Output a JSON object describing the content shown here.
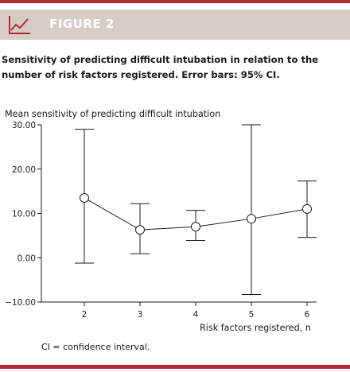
{
  "colors": {
    "accent": "#b22b34",
    "header_bg": "#d6ccc6",
    "ink": "#1a1a1a"
  },
  "header": {
    "label": "FIGURE 2",
    "icon": "line-chart-icon"
  },
  "caption": "Sensitivity of predicting difficult intubation in relation to the number of risk factors registered. Error bars: 95% CI.",
  "footnote": "CI = confidence interval.",
  "chart_data": {
    "type": "line",
    "title": "Mean sensitivity of predicting difficult intubation",
    "xlabel": "Risk factors registered, n",
    "ylabel": "",
    "x": [
      2,
      3,
      4,
      5,
      6
    ],
    "xticks": [
      "2",
      "3",
      "4",
      "5",
      "6"
    ],
    "yticks": [
      "30.00",
      "20.00",
      "10.00",
      "0.00",
      "−10.00"
    ],
    "ytick_values": [
      30,
      20,
      10,
      0,
      -10
    ],
    "ylim": [
      -10,
      30
    ],
    "series": [
      {
        "values": [
          13.5,
          6.3,
          7.0,
          8.8,
          11.0
        ],
        "lower": [
          -1.2,
          0.9,
          3.9,
          -8.3,
          4.6
        ],
        "upper": [
          29.0,
          12.2,
          10.7,
          30.0,
          17.3
        ]
      }
    ],
    "grid": false,
    "legend": "none"
  }
}
